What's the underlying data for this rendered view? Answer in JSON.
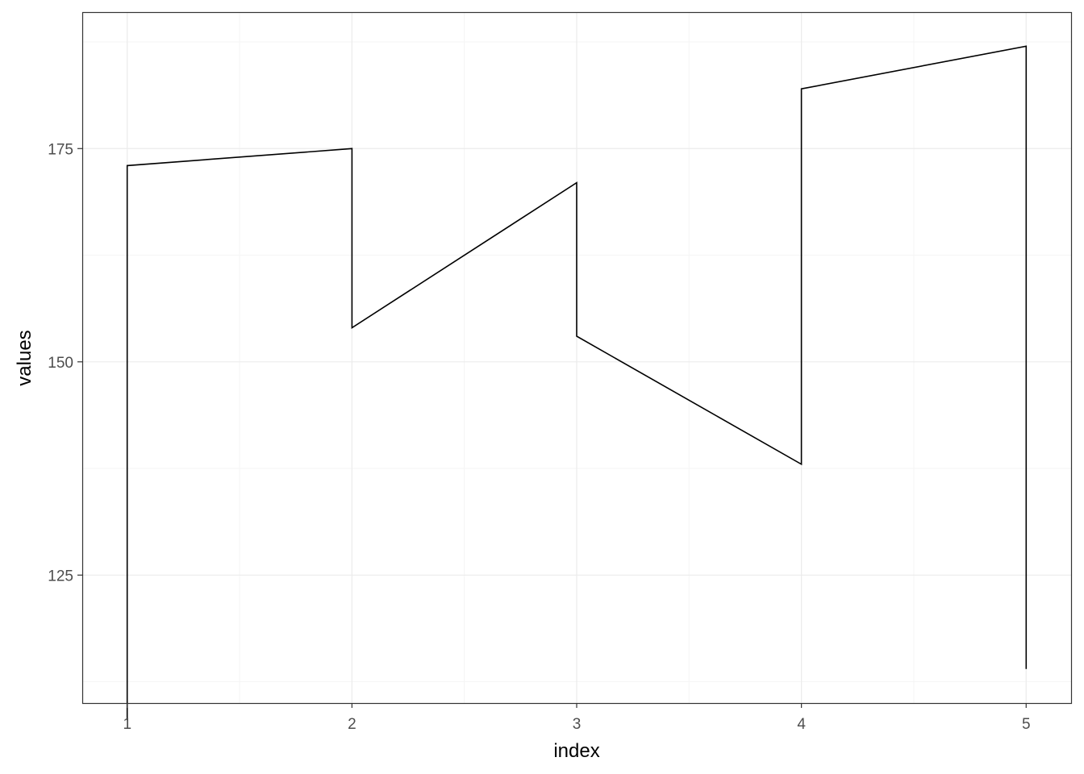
{
  "chart_data": {
    "type": "line",
    "title": "",
    "xlabel": "index",
    "ylabel": "values",
    "xlim": [
      0.8,
      5.2
    ],
    "ylim": [
      110,
      191
    ],
    "x_ticks": [
      1,
      2,
      3,
      4,
      5
    ],
    "x_tick_labels": [
      "1",
      "2",
      "3",
      "4",
      "5"
    ],
    "y_ticks": [
      125,
      150,
      175
    ],
    "y_tick_labels": [
      "125",
      "150",
      "175"
    ],
    "grid": true,
    "legend": "none",
    "series": [
      {
        "color": "#000000",
        "points": [
          [
            1,
            108
          ],
          [
            1,
            173
          ],
          [
            2,
            175
          ],
          [
            2,
            154
          ],
          [
            3,
            171
          ],
          [
            3,
            153
          ],
          [
            4,
            138
          ],
          [
            4,
            182
          ],
          [
            5,
            187
          ],
          [
            5,
            114
          ]
        ]
      }
    ]
  },
  "colors": {
    "panel_border": "#333333",
    "grid_major": "#ebebeb",
    "grid_minor": "#f5f5f5",
    "line": "#000000"
  }
}
